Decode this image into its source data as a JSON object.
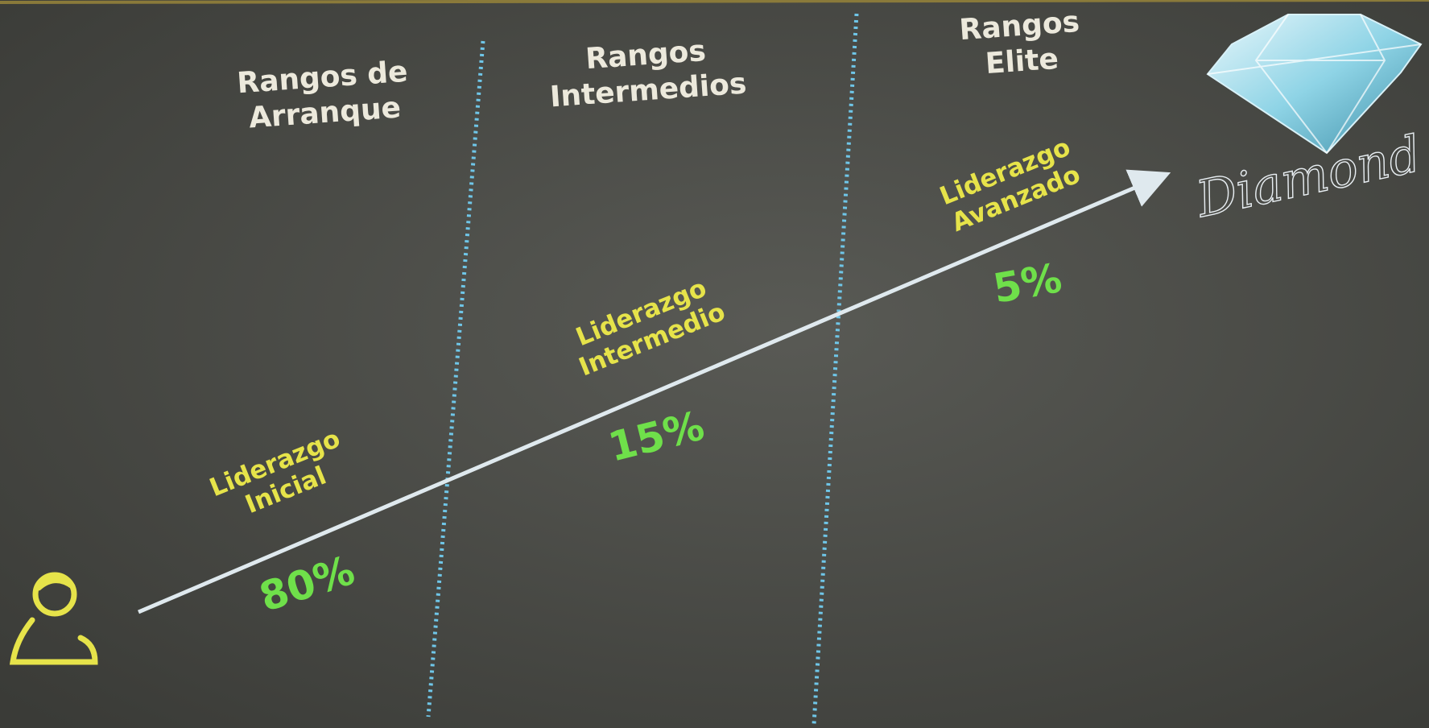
{
  "columns": [
    {
      "title": [
        "Rangos de",
        "Arranque"
      ]
    },
    {
      "title": [
        "Rangos",
        "Intermedios"
      ]
    },
    {
      "title": [
        "Rangos",
        "Elite"
      ]
    }
  ],
  "stages": [
    {
      "label": [
        "Liderazgo",
        "Inicial"
      ],
      "share": "80%"
    },
    {
      "label": [
        "Liderazgo",
        "Intermedio"
      ],
      "share": "15%"
    },
    {
      "label": [
        "Liderazgo",
        "Avanzado"
      ],
      "share": "5%"
    }
  ],
  "brand": "Diamond"
}
